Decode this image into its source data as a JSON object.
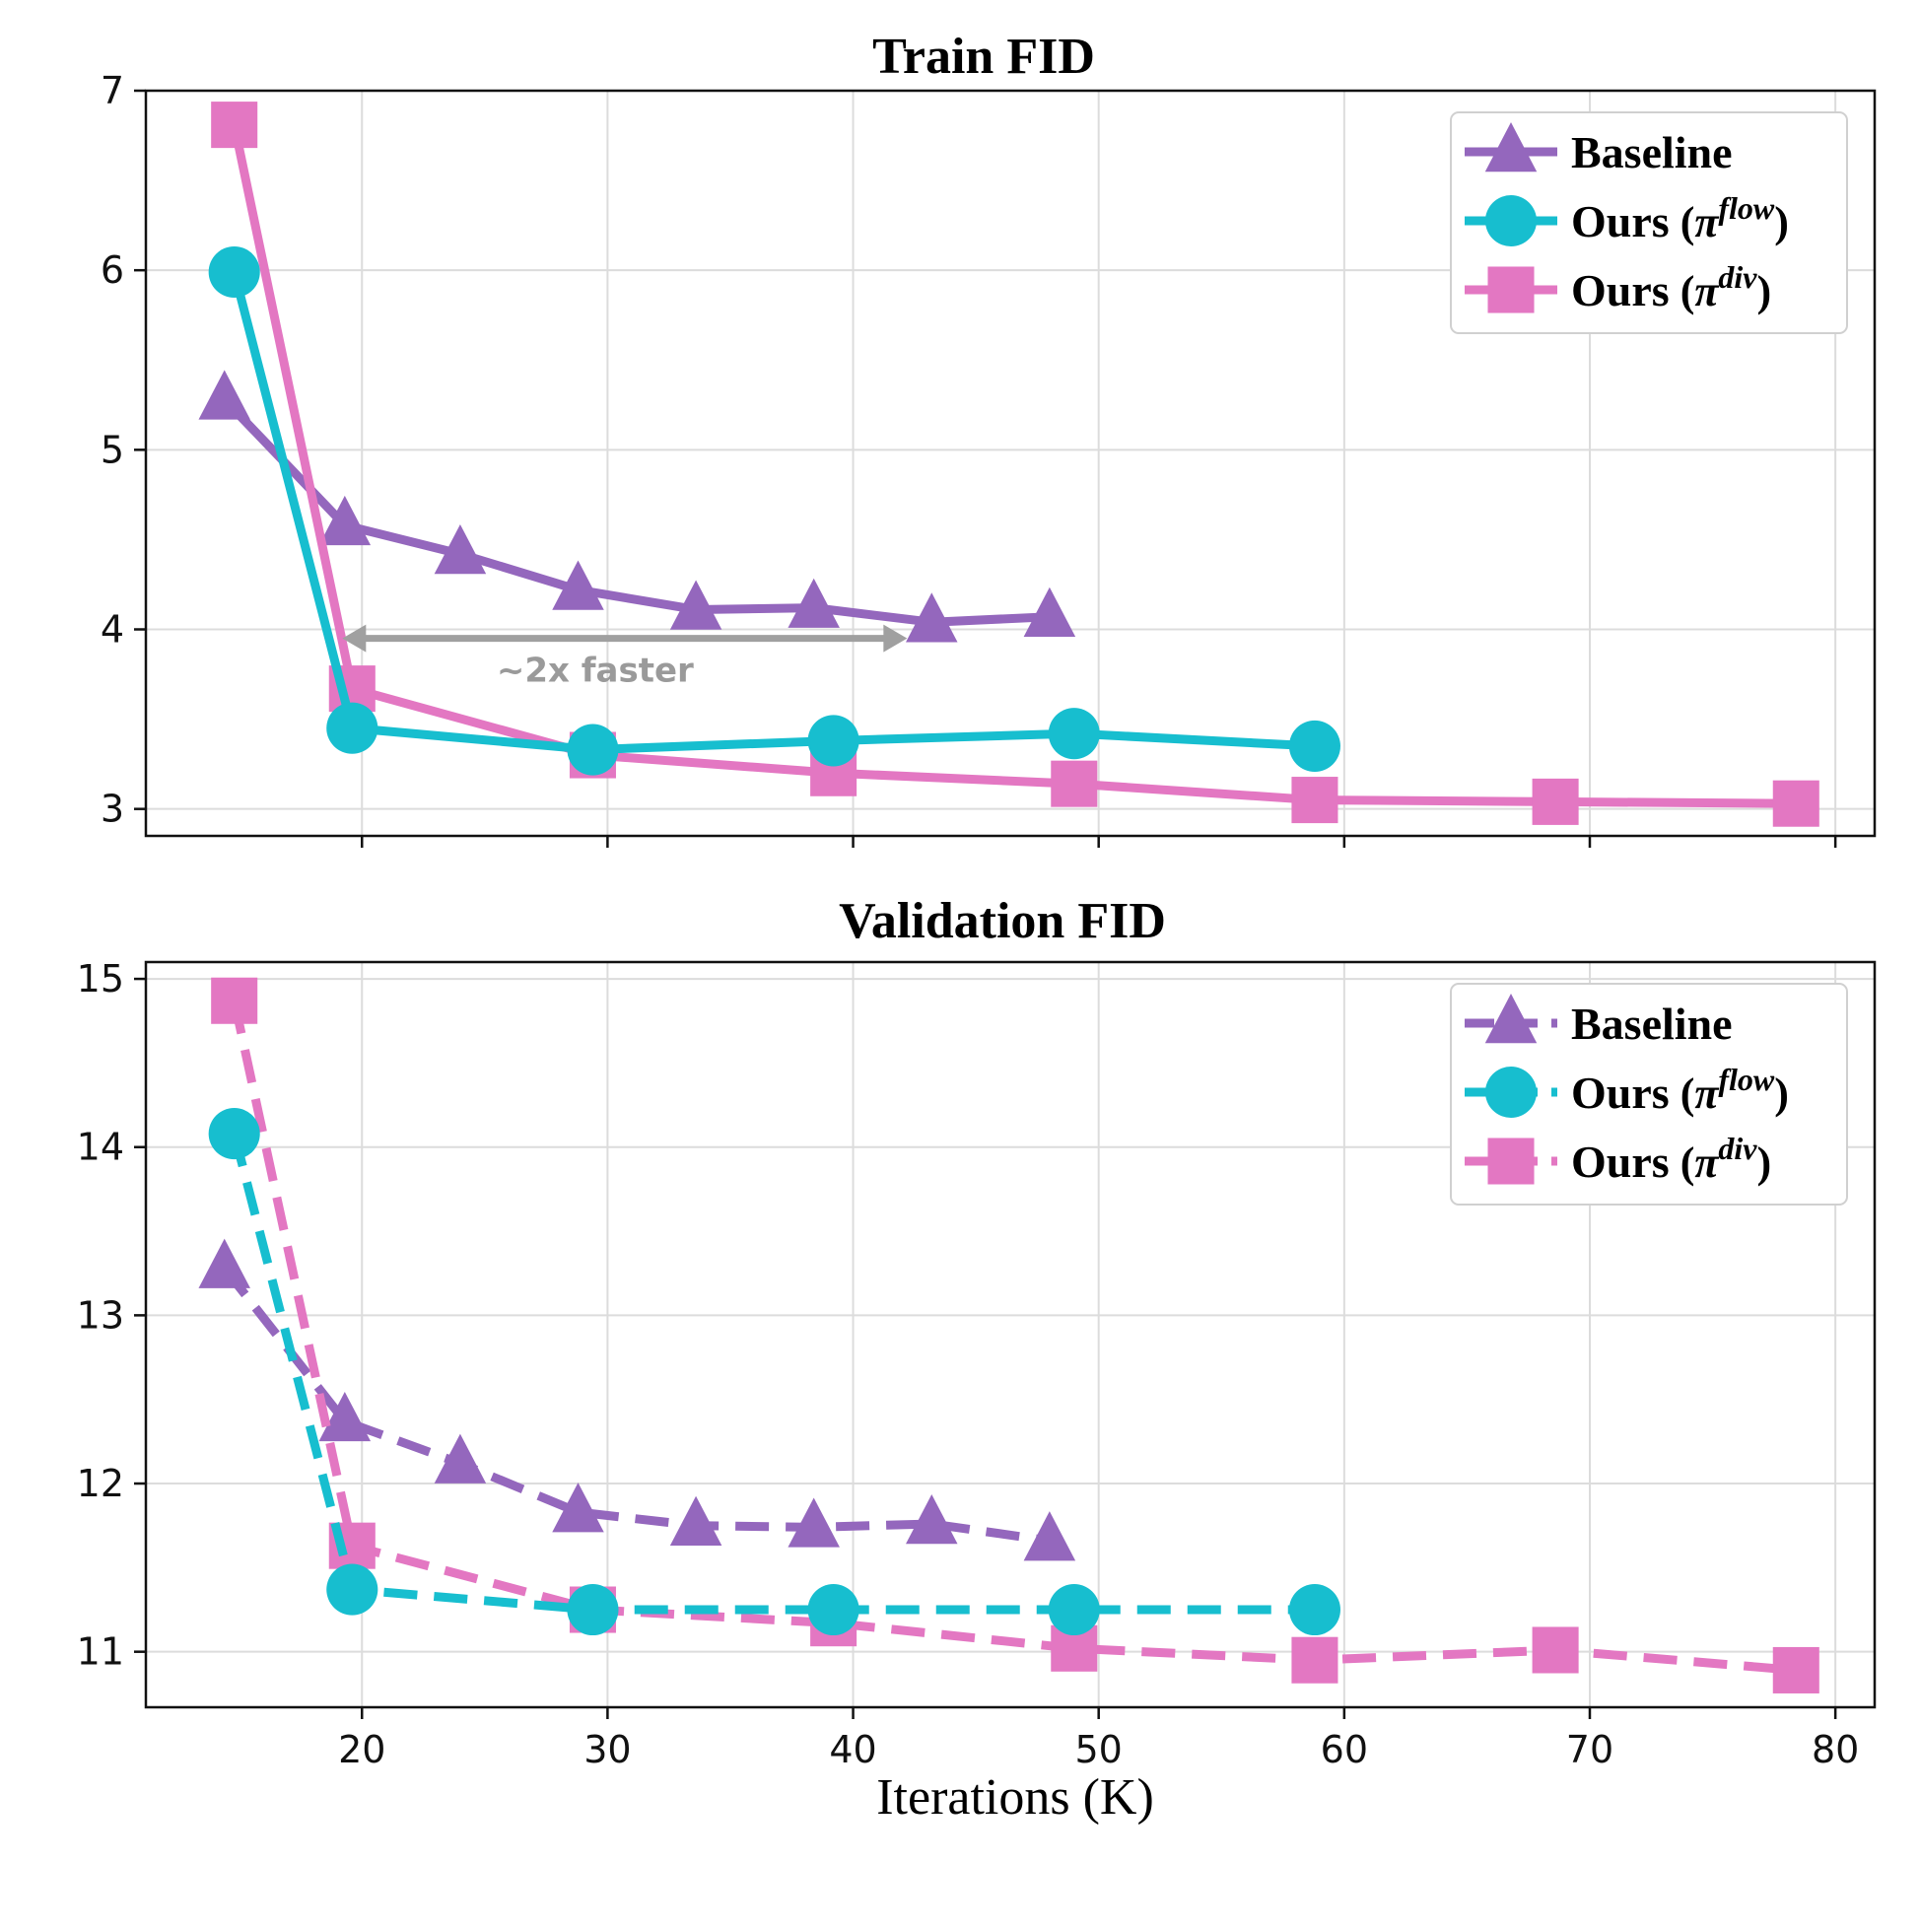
{
  "chart_data": [
    {
      "type": "line",
      "title": "Train FID",
      "xlabel": "",
      "ylabel": "",
      "xlim": [
        11.2,
        81.6
      ],
      "ylim": [
        2.85,
        7.0
      ],
      "xticks": [
        20,
        30,
        40,
        50,
        60,
        70,
        80
      ],
      "yticks": [
        3,
        4,
        5,
        6,
        7
      ],
      "show_x_tick_labels": false,
      "grid": true,
      "legend": "top-right",
      "annotation": {
        "text": "~2x faster",
        "x_from": 19.2,
        "x_to": 42.2,
        "y": 3.95
      },
      "series": [
        {
          "name": "Baseline",
          "linestyle": "solid",
          "marker": "triangle",
          "color": "#9467bd",
          "x": [
            14.4,
            19.3,
            24.0,
            28.8,
            33.6,
            38.4,
            43.2,
            48.0
          ],
          "y": [
            5.28,
            4.58,
            4.42,
            4.22,
            4.11,
            4.12,
            4.04,
            4.07
          ]
        },
        {
          "name": "Ours",
          "pi_sup": "flow",
          "linestyle": "solid",
          "marker": "circle",
          "color": "#17becf",
          "x": [
            14.8,
            19.6,
            29.4,
            39.2,
            49.0,
            58.8
          ],
          "y": [
            5.99,
            3.45,
            3.33,
            3.38,
            3.42,
            3.35
          ]
        },
        {
          "name": "Ours",
          "pi_sup": "div",
          "linestyle": "solid",
          "marker": "square",
          "color": "#e377c2",
          "x": [
            14.8,
            19.6,
            29.4,
            39.2,
            49.0,
            58.8,
            68.6,
            78.4
          ],
          "y": [
            6.81,
            3.67,
            3.3,
            3.2,
            3.14,
            3.05,
            3.04,
            3.03
          ]
        }
      ]
    },
    {
      "type": "line",
      "title": "Validation FID",
      "xlabel": "Iterations (K)",
      "ylabel": "",
      "xlim": [
        11.2,
        81.6
      ],
      "ylim": [
        10.67,
        15.1
      ],
      "xticks": [
        20,
        30,
        40,
        50,
        60,
        70,
        80
      ],
      "yticks": [
        11,
        12,
        13,
        14,
        15
      ],
      "show_x_tick_labels": true,
      "grid": true,
      "legend": "top-right",
      "series": [
        {
          "name": "Baseline",
          "linestyle": "dashed",
          "marker": "triangle",
          "color": "#9467bd",
          "x": [
            14.4,
            19.3,
            24.0,
            28.8,
            33.6,
            38.4,
            43.2,
            48.0
          ],
          "y": [
            13.28,
            12.37,
            12.12,
            11.83,
            11.75,
            11.74,
            11.76,
            11.66
          ]
        },
        {
          "name": "Ours",
          "pi_sup": "flow",
          "linestyle": "dashed",
          "marker": "circle",
          "color": "#17becf",
          "x": [
            14.8,
            19.6,
            29.4,
            39.2,
            49.0,
            58.8
          ],
          "y": [
            14.08,
            11.37,
            11.25,
            11.25,
            11.25,
            11.25
          ]
        },
        {
          "name": "Ours",
          "pi_sup": "div",
          "linestyle": "dashed",
          "marker": "square",
          "color": "#e377c2",
          "x": [
            14.8,
            19.6,
            29.4,
            39.2,
            49.0,
            58.8,
            68.6,
            78.4
          ],
          "y": [
            14.87,
            11.63,
            11.25,
            11.17,
            11.02,
            10.95,
            11.01,
            10.89
          ]
        }
      ]
    }
  ]
}
